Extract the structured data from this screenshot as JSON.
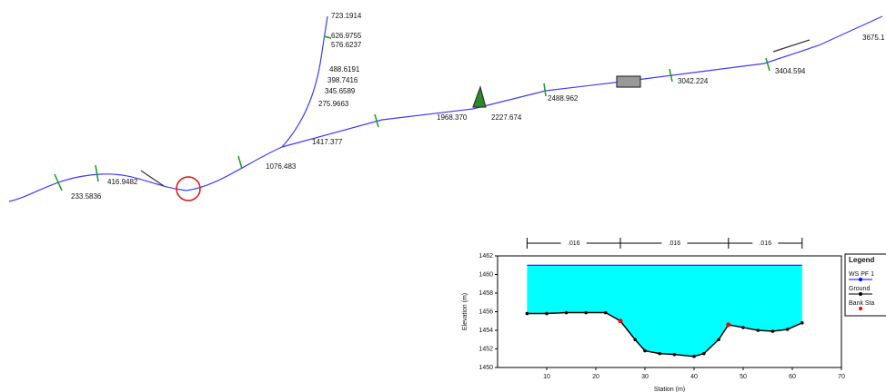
{
  "schematic": {
    "labels": [
      "723.1914",
      "626.9755",
      "576.6237",
      "488.6191",
      "398.7416",
      "345.6589",
      "275.9663",
      "1417.377",
      "1076.483",
      "416.9482",
      "233.5836",
      "1968.370",
      "2227.674",
      "2488.962",
      "3042.224",
      "3404.594",
      "3675.1"
    ]
  },
  "chart_data": {
    "type": "cross-section",
    "xlabel": "Station (m)",
    "ylabel": "Elevation (m)",
    "xlim": [
      0,
      70
    ],
    "ylim": [
      1450,
      1462
    ],
    "xticks": [
      10,
      20,
      30,
      40,
      50,
      60,
      70
    ],
    "yticks": [
      1450,
      1452,
      1454,
      1456,
      1458,
      1460,
      1462
    ],
    "water_surface": {
      "name": "WS PF 1",
      "color": "#00ffff",
      "value": 1461
    },
    "ground": {
      "name": "Ground",
      "color": "#000000",
      "x": [
        6,
        10,
        14,
        18,
        22,
        25,
        28,
        30,
        33,
        36,
        40,
        42,
        45,
        47,
        50,
        53,
        56,
        59,
        62
      ],
      "y": [
        1455.8,
        1455.8,
        1455.9,
        1455.9,
        1455.9,
        1455.0,
        1453.0,
        1451.8,
        1451.5,
        1451.4,
        1451.2,
        1451.5,
        1453.0,
        1454.6,
        1454.3,
        1454.0,
        1453.9,
        1454.1,
        1454.8
      ]
    },
    "bank_stations": {
      "name": "Bank Sta",
      "color": "#ff0000",
      "x": [
        25,
        47
      ],
      "y": [
        1455.0,
        1454.6
      ]
    },
    "n_values": {
      "values": [
        0.016,
        0.016,
        0.016
      ],
      "value_labels": [
        ".016",
        ".016",
        ".016"
      ],
      "breaks": [
        6,
        25,
        47,
        62
      ]
    },
    "legend_title": "Legend"
  }
}
